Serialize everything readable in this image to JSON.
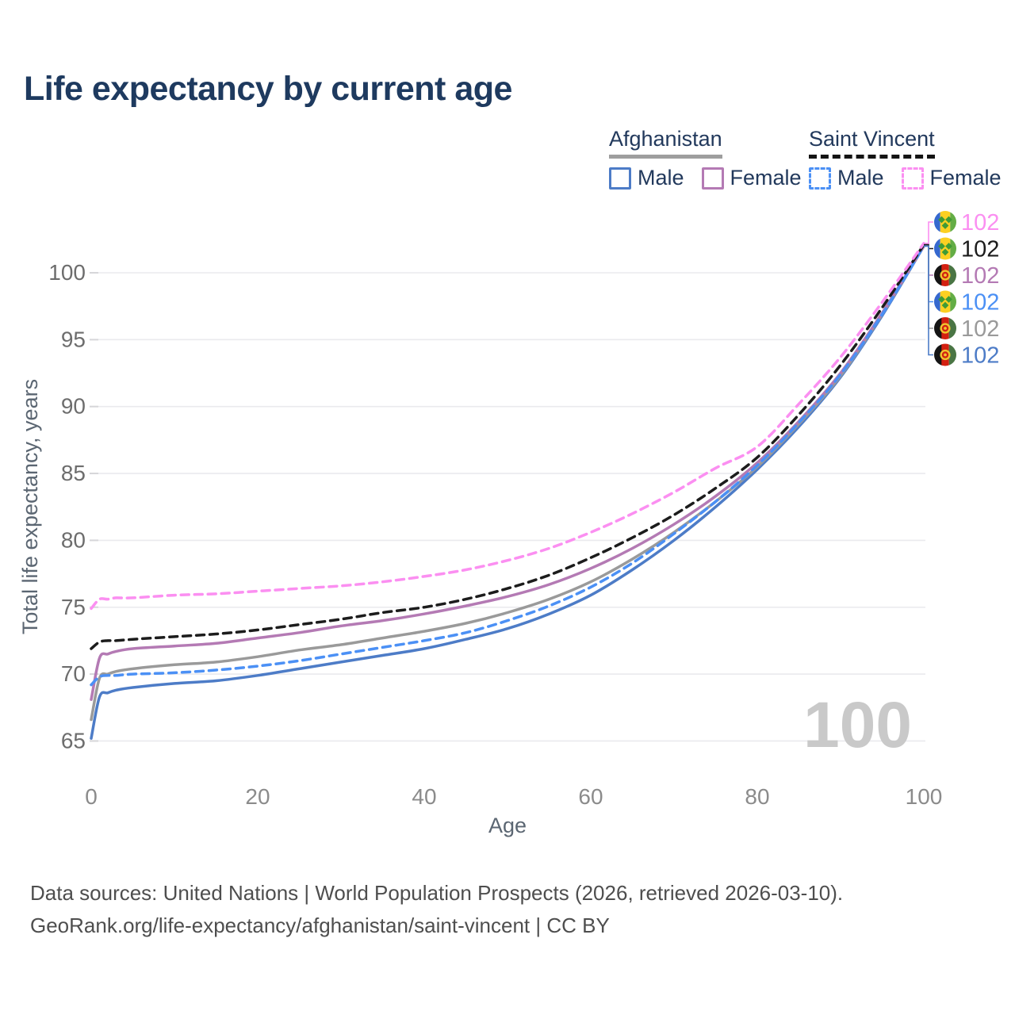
{
  "title": "Life expectancy by current age",
  "watermark": "100",
  "legend": {
    "groups": [
      {
        "country": "Afghanistan",
        "underline_style": "solid",
        "underline_color": "#9e9e9e",
        "items": [
          {
            "label": "Male",
            "color": "#4d7cc7",
            "dashed": false
          },
          {
            "label": "Female",
            "color": "#b47ab4",
            "dashed": false
          }
        ]
      },
      {
        "country": "Saint Vincent",
        "underline_style": "dashed",
        "underline_color": "#141414",
        "items": [
          {
            "label": "Male",
            "color": "#4b90f5",
            "dashed": true
          },
          {
            "label": "Female",
            "color": "#fb8ff1",
            "dashed": true
          }
        ]
      }
    ]
  },
  "footer": {
    "line1": "Data sources: United Nations | World Population Prospects (2026, retrieved 2026-03-10).",
    "line2": "GeoRank.org/life-expectancy/afghanistan/saint-vincent | CC BY"
  },
  "flags": {
    "saint_vincent": {
      "blue": "#3568cf",
      "yellow": "#fcd022",
      "green": "#64ad45",
      "diamond": "#3f9b35"
    },
    "afghanistan": {
      "black": "#151515",
      "red": "#d32011",
      "green": "#4a7544",
      "gold": "#f0c52e"
    }
  },
  "chart_data": {
    "type": "line",
    "title": "Life expectancy by current age",
    "xlabel": "Age",
    "ylabel": "Total life expectancy, years",
    "xlim": [
      0,
      100
    ],
    "ylim": [
      65,
      103
    ],
    "xticks": [
      0,
      20,
      40,
      60,
      80,
      100
    ],
    "yticks": [
      65,
      70,
      75,
      80,
      85,
      90,
      95,
      100
    ],
    "grid": "horizontal",
    "legend_position": "top-right",
    "age_watermark": "100",
    "end_value_label": "102",
    "x": [
      0,
      1,
      2,
      3,
      5,
      10,
      15,
      20,
      25,
      30,
      35,
      40,
      45,
      50,
      55,
      60,
      65,
      70,
      75,
      80,
      85,
      90,
      95,
      100
    ],
    "series": [
      {
        "id": "afghanistan-male",
        "name": "Afghanistan Male",
        "country": "Afghanistan",
        "sex": "Male",
        "color": "#4d7cc7",
        "dashed": false,
        "flag": "afghanistan",
        "end_value": "102",
        "label_row": 5,
        "values": [
          65.2,
          68.3,
          68.6,
          68.8,
          69.0,
          69.3,
          69.5,
          69.9,
          70.4,
          70.9,
          71.4,
          71.9,
          72.6,
          73.4,
          74.5,
          75.9,
          77.8,
          80.0,
          82.5,
          85.3,
          88.5,
          92.2,
          96.8,
          102.0
        ]
      },
      {
        "id": "afghanistan-total",
        "name": "Afghanistan",
        "country": "Afghanistan",
        "sex": "All",
        "color": "#9a9a9a",
        "dashed": false,
        "flag": "afghanistan",
        "end_value": "102",
        "label_row": 4,
        "values": [
          66.6,
          69.7,
          70.0,
          70.2,
          70.4,
          70.7,
          70.9,
          71.3,
          71.8,
          72.2,
          72.7,
          73.2,
          73.8,
          74.6,
          75.6,
          76.9,
          78.6,
          80.6,
          82.9,
          85.5,
          88.7,
          92.3,
          96.9,
          102.0
        ]
      },
      {
        "id": "afghanistan-female",
        "name": "Afghanistan Female",
        "country": "Afghanistan",
        "sex": "Female",
        "color": "#b47ab4",
        "dashed": false,
        "flag": "afghanistan",
        "end_value": "102",
        "label_row": 2,
        "values": [
          68.1,
          71.2,
          71.5,
          71.7,
          71.9,
          72.1,
          72.3,
          72.7,
          73.1,
          73.6,
          74.0,
          74.5,
          75.1,
          75.8,
          76.7,
          77.9,
          79.4,
          81.2,
          83.3,
          85.8,
          88.9,
          92.5,
          97.0,
          102.0
        ]
      },
      {
        "id": "saint-vincent-male",
        "name": "Saint Vincent Male",
        "country": "Saint Vincent",
        "sex": "Male",
        "color": "#4b90f5",
        "dashed": true,
        "flag": "saint-vincent",
        "end_value": "102",
        "label_row": 3,
        "values": [
          69.2,
          69.8,
          69.9,
          69.9,
          70.0,
          70.1,
          70.3,
          70.6,
          71.0,
          71.5,
          72.0,
          72.5,
          73.1,
          74.0,
          75.1,
          76.5,
          78.3,
          80.5,
          82.9,
          85.6,
          88.8,
          92.4,
          96.9,
          102.0
        ]
      },
      {
        "id": "saint-vincent-total",
        "name": "Saint Vincent",
        "country": "Saint Vincent",
        "sex": "All",
        "color": "#1c1c1c",
        "dashed": true,
        "flag": "saint-vincent",
        "end_value": "102",
        "label_row": 1,
        "values": [
          71.9,
          72.4,
          72.5,
          72.5,
          72.6,
          72.8,
          73.0,
          73.3,
          73.7,
          74.1,
          74.6,
          75.0,
          75.6,
          76.4,
          77.4,
          78.7,
          80.2,
          81.9,
          83.9,
          86.2,
          89.4,
          93.1,
          97.4,
          102.1
        ]
      },
      {
        "id": "saint-vincent-female",
        "name": "Saint Vincent Female",
        "country": "Saint Vincent",
        "sex": "Female",
        "color": "#fb8ff1",
        "dashed": true,
        "flag": "saint-vincent",
        "end_value": "102",
        "label_row": 0,
        "values": [
          74.9,
          75.6,
          75.6,
          75.7,
          75.7,
          75.9,
          76.0,
          76.2,
          76.4,
          76.6,
          76.9,
          77.3,
          77.8,
          78.5,
          79.4,
          80.6,
          82.0,
          83.6,
          85.4,
          87.0,
          90.2,
          93.7,
          97.8,
          102.2
        ]
      }
    ]
  }
}
